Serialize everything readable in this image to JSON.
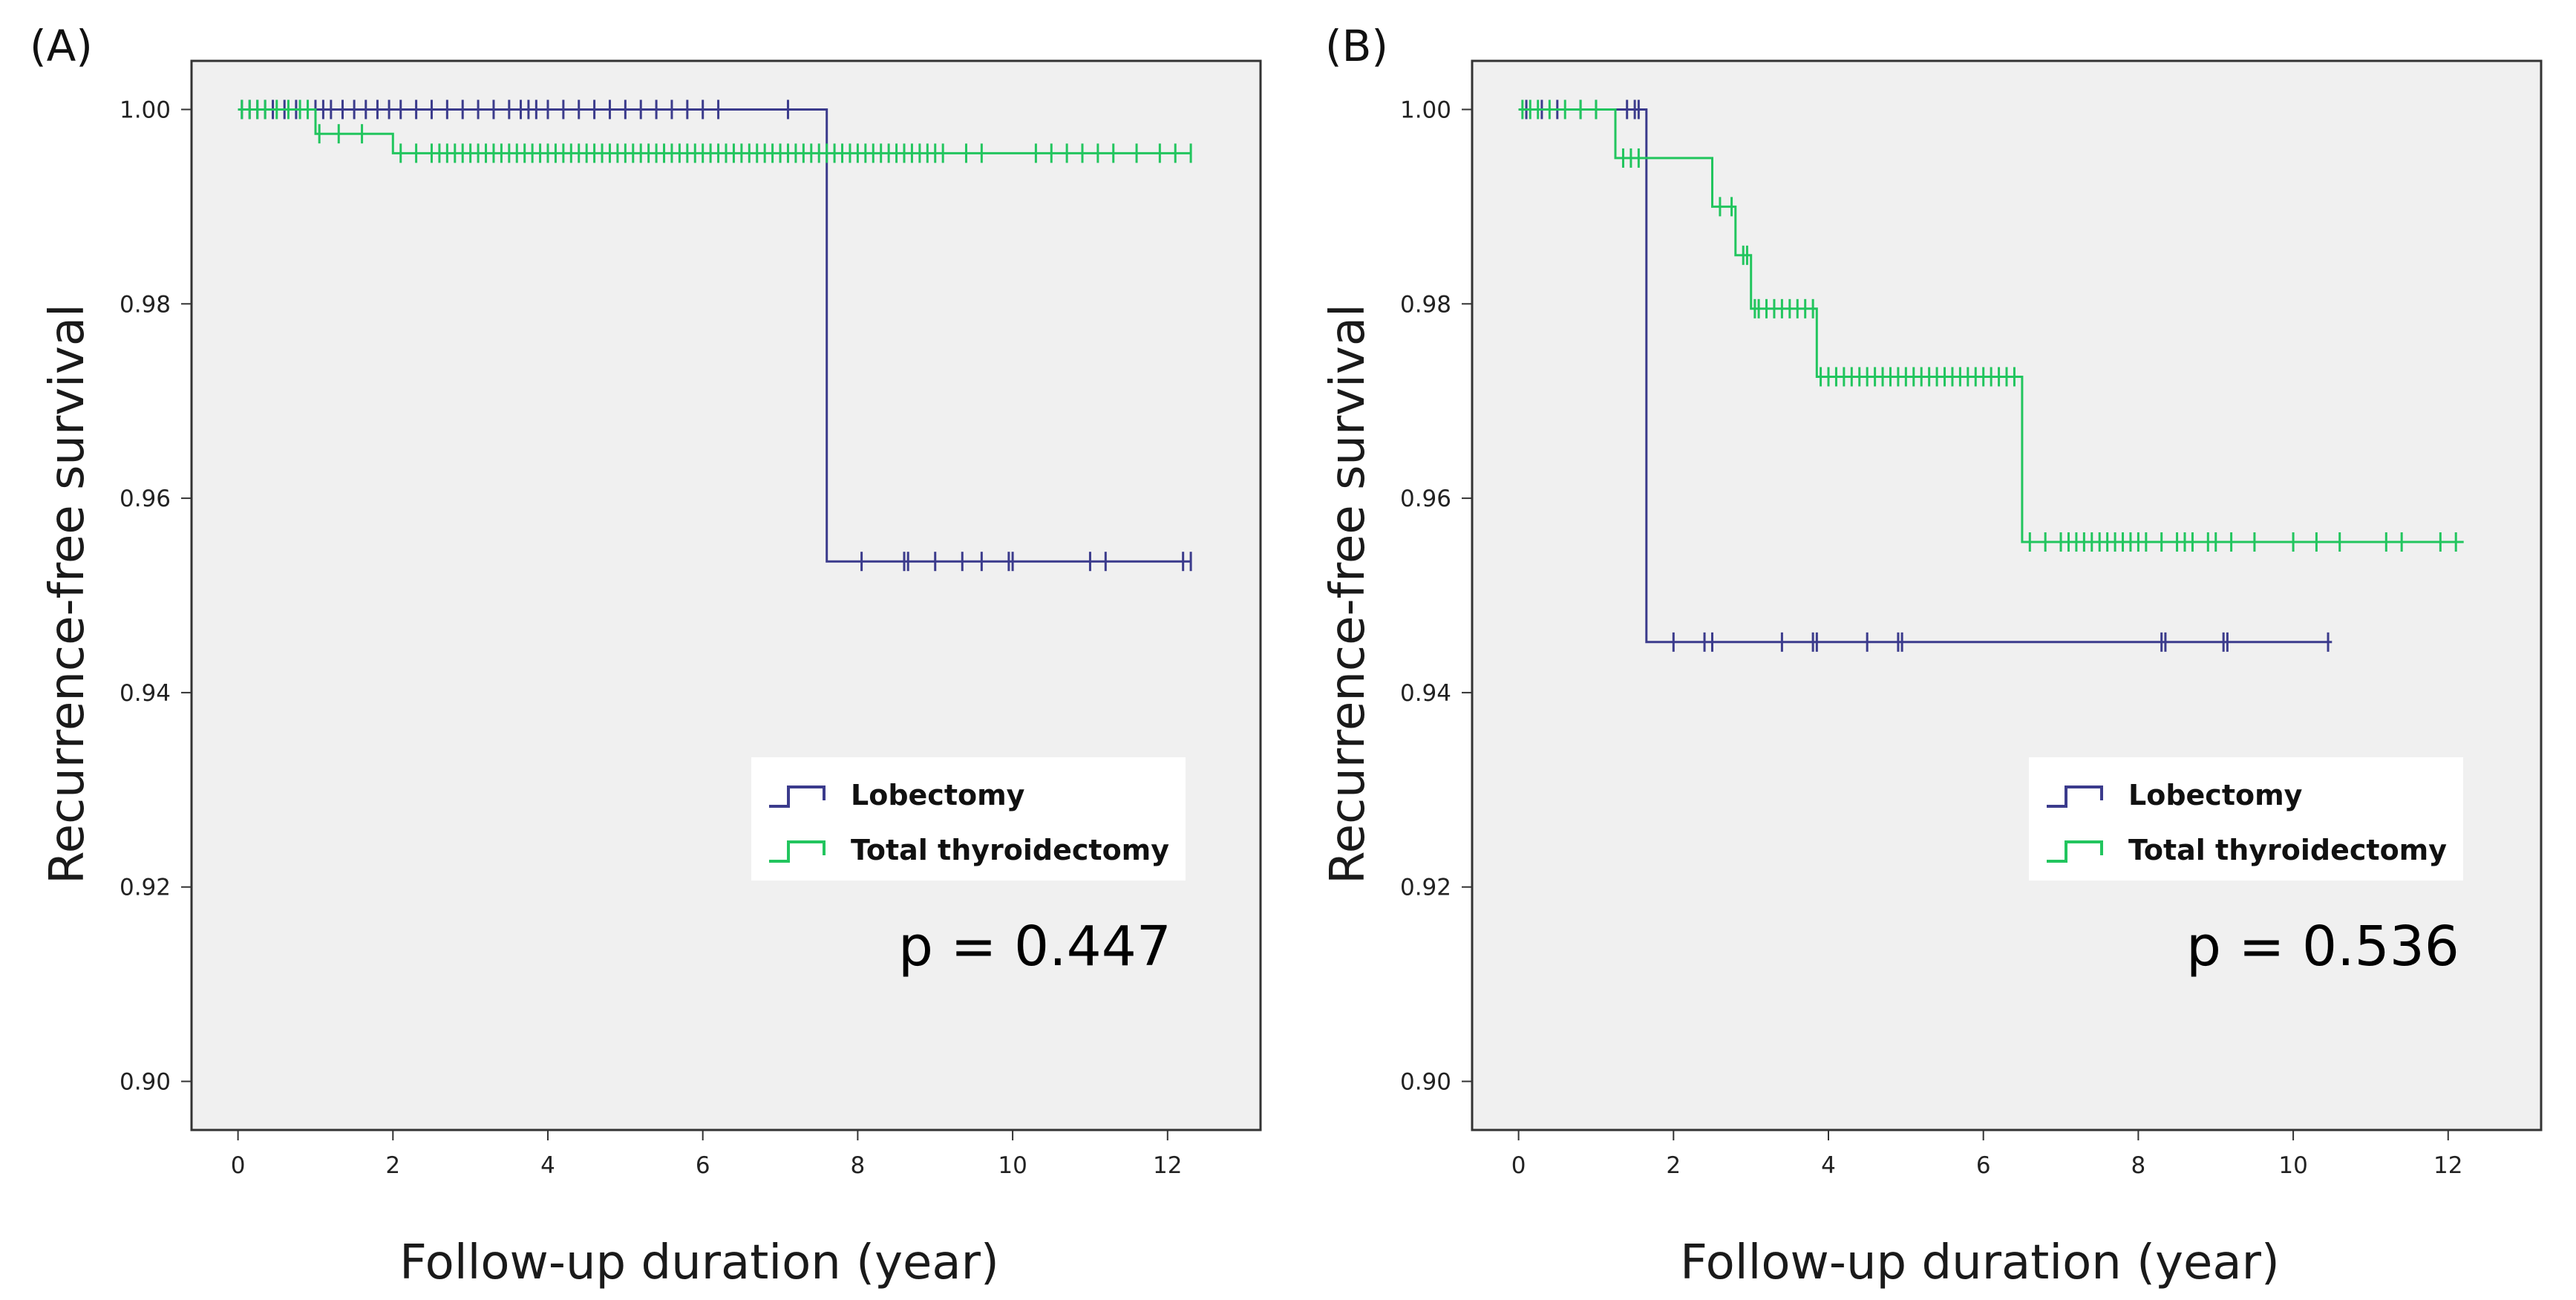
{
  "chart_data": [
    {
      "type": "line",
      "panel_label": "(A)",
      "xlabel": "Follow-up duration (year)",
      "ylabel": "Recurrence-free survival",
      "xlim": [
        -0.6,
        13.2
      ],
      "ylim": [
        0.895,
        1.005
      ],
      "x_ticks": [
        0,
        2,
        4,
        6,
        8,
        10,
        12
      ],
      "y_ticks": [
        0.9,
        0.92,
        0.94,
        0.96,
        0.98,
        1.0
      ],
      "y_tick_labels": [
        "0.90",
        "0.92",
        "0.94",
        "0.96",
        "0.98",
        "1.00"
      ],
      "legend_position": "lower-right",
      "annotation": "p = 0.447",
      "series": [
        {
          "name": "Lobectomy",
          "color": "#3b3b8c",
          "steps": [
            [
              0,
              1.0
            ],
            [
              7.6,
              0.9535
            ],
            [
              12.3,
              0.9535
            ]
          ],
          "censors": [
            0.05,
            0.15,
            0.25,
            0.35,
            0.45,
            0.6,
            0.75,
            0.9,
            1.0,
            1.1,
            1.2,
            1.35,
            1.5,
            1.65,
            1.8,
            1.95,
            2.1,
            2.3,
            2.5,
            2.7,
            2.9,
            3.1,
            3.3,
            3.5,
            3.65,
            3.75,
            3.85,
            4.0,
            4.2,
            4.4,
            4.6,
            4.8,
            5.0,
            5.2,
            5.4,
            5.6,
            5.8,
            6.0,
            6.2,
            7.1,
            8.05,
            8.6,
            8.65,
            9.0,
            9.35,
            9.6,
            9.95,
            10.0,
            11.0,
            11.2,
            12.2,
            12.3
          ]
        },
        {
          "name": "Total thyroidectomy",
          "color": "#22c55e",
          "steps": [
            [
              0,
              1.0
            ],
            [
              1.0,
              0.9975
            ],
            [
              2.0,
              0.9955
            ],
            [
              12.3,
              0.9955
            ]
          ],
          "censors": [
            0.05,
            0.15,
            0.25,
            0.35,
            0.5,
            0.65,
            0.8,
            0.9,
            1.05,
            1.3,
            1.6,
            2.1,
            2.3,
            2.5,
            2.6,
            2.7,
            2.8,
            2.9,
            3.0,
            3.1,
            3.2,
            3.3,
            3.4,
            3.5,
            3.6,
            3.7,
            3.8,
            3.9,
            4.0,
            4.1,
            4.2,
            4.3,
            4.4,
            4.5,
            4.6,
            4.7,
            4.8,
            4.9,
            5.0,
            5.1,
            5.2,
            5.3,
            5.4,
            5.5,
            5.6,
            5.7,
            5.8,
            5.9,
            6.0,
            6.1,
            6.2,
            6.3,
            6.4,
            6.5,
            6.6,
            6.7,
            6.8,
            6.9,
            7.0,
            7.1,
            7.2,
            7.3,
            7.4,
            7.5,
            7.6,
            7.7,
            7.8,
            7.9,
            8.0,
            8.1,
            8.2,
            8.3,
            8.4,
            8.5,
            8.6,
            8.7,
            8.8,
            8.9,
            9.0,
            9.1,
            9.4,
            9.6,
            10.3,
            10.5,
            10.7,
            10.9,
            11.1,
            11.3,
            11.6,
            11.9,
            12.1,
            12.3
          ]
        }
      ]
    },
    {
      "type": "line",
      "panel_label": "(B)",
      "xlabel": "Follow-up duration (year)",
      "ylabel": "Recurrence-free survival",
      "xlim": [
        -0.6,
        13.2
      ],
      "ylim": [
        0.895,
        1.005
      ],
      "x_ticks": [
        0,
        2,
        4,
        6,
        8,
        10,
        12
      ],
      "y_ticks": [
        0.9,
        0.92,
        0.94,
        0.96,
        0.98,
        1.0
      ],
      "y_tick_labels": [
        "0.90",
        "0.92",
        "0.94",
        "0.96",
        "0.98",
        "1.00"
      ],
      "legend_position": "lower-right",
      "annotation": "p = 0.536",
      "series": [
        {
          "name": "Lobectomy",
          "color": "#3b3b8c",
          "steps": [
            [
              0,
              1.0
            ],
            [
              1.65,
              0.9452
            ],
            [
              10.5,
              0.9452
            ]
          ],
          "censors": [
            0.1,
            0.3,
            0.5,
            0.8,
            1.0,
            1.4,
            1.5,
            1.55,
            2.0,
            2.4,
            2.5,
            3.4,
            3.8,
            3.85,
            4.5,
            4.9,
            4.95,
            8.3,
            8.35,
            9.1,
            9.15,
            10.45
          ]
        },
        {
          "name": "Total thyroidectomy",
          "color": "#22c55e",
          "steps": [
            [
              0,
              1.0
            ],
            [
              1.25,
              0.995
            ],
            [
              2.5,
              0.99
            ],
            [
              2.8,
              0.985
            ],
            [
              3.0,
              0.9795
            ],
            [
              3.85,
              0.9725
            ],
            [
              6.5,
              0.9555
            ],
            [
              12.2,
              0.9555
            ]
          ],
          "censors": [
            0.05,
            0.15,
            0.25,
            0.4,
            0.6,
            0.8,
            1.0,
            1.35,
            1.45,
            1.55,
            2.6,
            2.75,
            2.9,
            2.95,
            3.05,
            3.1,
            3.2,
            3.3,
            3.4,
            3.5,
            3.6,
            3.7,
            3.8,
            3.9,
            4.0,
            4.1,
            4.2,
            4.3,
            4.4,
            4.5,
            4.6,
            4.7,
            4.8,
            4.9,
            5.0,
            5.1,
            5.2,
            5.3,
            5.4,
            5.5,
            5.6,
            5.7,
            5.8,
            5.9,
            6.0,
            6.1,
            6.2,
            6.3,
            6.4,
            6.6,
            6.8,
            7.0,
            7.1,
            7.2,
            7.3,
            7.4,
            7.5,
            7.6,
            7.7,
            7.8,
            7.9,
            8.0,
            8.1,
            8.3,
            8.5,
            8.6,
            8.7,
            8.9,
            9.0,
            9.2,
            9.5,
            10.0,
            10.3,
            10.6,
            11.2,
            11.4,
            11.9,
            12.1
          ]
        }
      ]
    }
  ]
}
